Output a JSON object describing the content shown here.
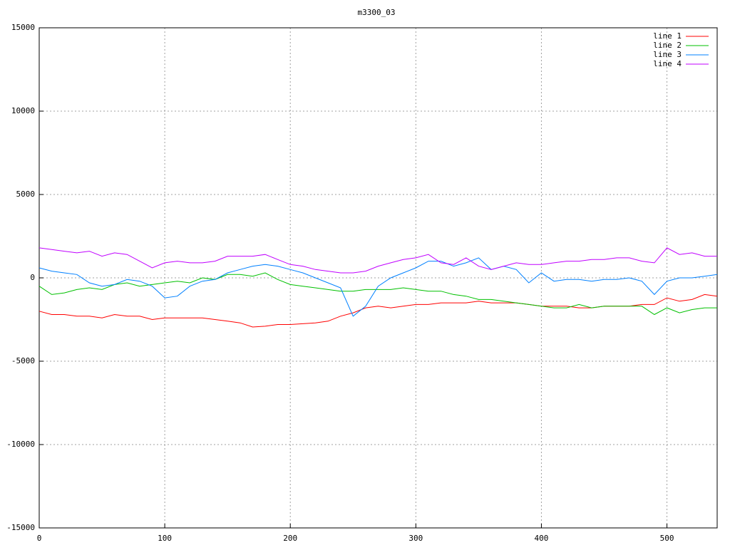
{
  "chart_data": {
    "type": "line",
    "title": "m3300_03",
    "x": [
      0,
      10,
      20,
      30,
      40,
      50,
      60,
      70,
      80,
      90,
      100,
      110,
      120,
      130,
      140,
      150,
      160,
      170,
      180,
      190,
      200,
      210,
      220,
      230,
      240,
      250,
      260,
      270,
      280,
      290,
      300,
      310,
      320,
      330,
      340,
      350,
      360,
      370,
      380,
      390,
      400,
      410,
      420,
      430,
      440,
      450,
      460,
      470,
      480,
      490,
      500,
      510,
      520,
      530,
      540
    ],
    "series": [
      {
        "name": "line 1",
        "color": "#ff0000",
        "values": [
          -2000,
          -2200,
          -2200,
          -2300,
          -2300,
          -2400,
          -2200,
          -2300,
          -2300,
          -2500,
          -2400,
          -2400,
          -2400,
          -2400,
          -2500,
          -2600,
          -2700,
          -2950,
          -2900,
          -2800,
          -2800,
          -2750,
          -2700,
          -2600,
          -2300,
          -2100,
          -1800,
          -1700,
          -1800,
          -1700,
          -1600,
          -1600,
          -1500,
          -1500,
          -1500,
          -1400,
          -1500,
          -1500,
          -1500,
          -1600,
          -1700,
          -1700,
          -1700,
          -1800,
          -1800,
          -1700,
          -1700,
          -1700,
          -1600,
          -1600,
          -1200,
          -1400,
          -1300,
          -1000,
          -1100
        ]
      },
      {
        "name": "line 2",
        "color": "#00c000",
        "values": [
          -500,
          -1000,
          -900,
          -700,
          -600,
          -700,
          -400,
          -300,
          -500,
          -400,
          -300,
          -200,
          -300,
          0,
          -100,
          200,
          200,
          100,
          300,
          -100,
          -400,
          -500,
          -600,
          -700,
          -800,
          -800,
          -700,
          -700,
          -700,
          -600,
          -700,
          -800,
          -800,
          -1000,
          -1100,
          -1300,
          -1300,
          -1400,
          -1500,
          -1600,
          -1700,
          -1800,
          -1800,
          -1600,
          -1800,
          -1700,
          -1700,
          -1700,
          -1700,
          -2200,
          -1800,
          -2100,
          -1900,
          -1800,
          -1800
        ]
      },
      {
        "name": "line 3",
        "color": "#0080ff",
        "values": [
          600,
          400,
          300,
          200,
          -300,
          -500,
          -400,
          -100,
          -200,
          -500,
          -1200,
          -1100,
          -500,
          -200,
          -100,
          300,
          500,
          700,
          800,
          700,
          500,
          300,
          0,
          -300,
          -600,
          -2300,
          -1700,
          -500,
          0,
          300,
          600,
          1000,
          1000,
          700,
          900,
          1200,
          500,
          700,
          500,
          -300,
          300,
          -200,
          -100,
          -100,
          -200,
          -100,
          -100,
          0,
          -200,
          -1000,
          -200,
          0,
          0,
          100,
          200
        ]
      },
      {
        "name": "line 4",
        "color": "#c000ff",
        "values": [
          1800,
          1700,
          1600,
          1500,
          1600,
          1300,
          1500,
          1400,
          1000,
          600,
          900,
          1000,
          900,
          900,
          1000,
          1300,
          1300,
          1300,
          1400,
          1100,
          800,
          700,
          500,
          400,
          300,
          300,
          400,
          700,
          900,
          1100,
          1200,
          1400,
          900,
          800,
          1200,
          700,
          500,
          700,
          900,
          800,
          800,
          900,
          1000,
          1000,
          1100,
          1100,
          1200,
          1200,
          1000,
          900,
          1800,
          1400,
          1500,
          1300,
          1300
        ]
      }
    ],
    "xlim": [
      0,
      540
    ],
    "xticks": [
      0,
      100,
      200,
      300,
      400,
      500
    ],
    "ylim": [
      -15000,
      15000
    ],
    "yticks": [
      -15000,
      -10000,
      -5000,
      0,
      5000,
      10000,
      15000
    ],
    "grid": true,
    "legend": "top-right"
  }
}
